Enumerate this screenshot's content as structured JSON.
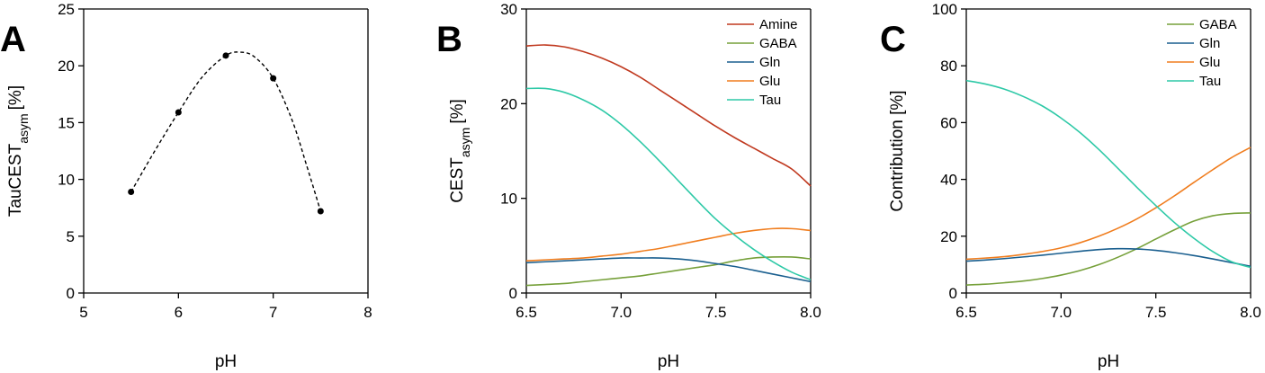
{
  "chart_data": [
    {
      "panel": "A",
      "type": "scatter",
      "xlabel": "pH",
      "ylabel_main": "TauCEST",
      "ylabel_sub": "asym",
      "ylabel_unit": "[%]",
      "xlim": [
        5,
        8
      ],
      "ylim": [
        0,
        25
      ],
      "xticks": [
        "5",
        "6",
        "7",
        "8"
      ],
      "yticks": [
        "0",
        "5",
        "10",
        "15",
        "20",
        "25"
      ],
      "series": [
        {
          "x": [
            5.5,
            6.0,
            6.5,
            7.0,
            7.5
          ],
          "y": [
            8.9,
            15.9,
            20.9,
            18.9,
            7.2
          ],
          "color": "#000000"
        }
      ],
      "fit_curve": {
        "style": "dashed",
        "x": [
          5.5,
          5.75,
          6.0,
          6.25,
          6.5,
          6.65,
          6.8,
          7.0,
          7.2,
          7.35,
          7.5
        ],
        "y": [
          8.9,
          12.5,
          15.9,
          19.0,
          20.9,
          21.2,
          20.8,
          18.9,
          15.2,
          11.3,
          7.2
        ]
      }
    },
    {
      "panel": "B",
      "type": "line",
      "xlabel": "pH",
      "ylabel_main": "CEST",
      "ylabel_sub": "asym",
      "ylabel_unit": "[%]",
      "xlim": [
        6.5,
        8.0
      ],
      "ylim": [
        0,
        30
      ],
      "xticks": [
        "6.5",
        "7.0",
        "7.5",
        "8.0"
      ],
      "yticks": [
        "0",
        "10",
        "20",
        "30"
      ],
      "x": [
        6.5,
        6.6,
        6.7,
        6.8,
        6.9,
        7.0,
        7.1,
        7.2,
        7.3,
        7.4,
        7.5,
        7.6,
        7.7,
        7.8,
        7.9,
        8.0
      ],
      "series": [
        {
          "name": "Amine",
          "color": "#c0391f",
          "values": [
            26.1,
            26.2,
            26.0,
            25.5,
            24.8,
            23.9,
            22.8,
            21.5,
            20.2,
            18.9,
            17.6,
            16.4,
            15.3,
            14.2,
            13.1,
            11.3
          ]
        },
        {
          "name": "GABA",
          "color": "#76a03a",
          "values": [
            0.8,
            0.9,
            1.0,
            1.2,
            1.4,
            1.6,
            1.8,
            2.1,
            2.4,
            2.7,
            3.0,
            3.4,
            3.7,
            3.8,
            3.8,
            3.6
          ]
        },
        {
          "name": "Gln",
          "color": "#1a5f8f",
          "values": [
            3.2,
            3.3,
            3.4,
            3.5,
            3.6,
            3.7,
            3.7,
            3.7,
            3.6,
            3.4,
            3.1,
            2.8,
            2.4,
            2.0,
            1.6,
            1.2
          ]
        },
        {
          "name": "Glu",
          "color": "#f07d1e",
          "values": [
            3.4,
            3.5,
            3.6,
            3.7,
            3.9,
            4.1,
            4.4,
            4.7,
            5.1,
            5.5,
            5.9,
            6.3,
            6.6,
            6.8,
            6.8,
            6.6
          ]
        },
        {
          "name": "Tau",
          "color": "#2ec9a7",
          "values": [
            21.6,
            21.6,
            21.2,
            20.4,
            19.3,
            17.8,
            16.0,
            14.0,
            11.9,
            9.8,
            7.8,
            6.1,
            4.6,
            3.3,
            2.2,
            1.4
          ]
        }
      ],
      "legend_position": "top-right"
    },
    {
      "panel": "C",
      "type": "line",
      "xlabel": "pH",
      "ylabel": "Contribution [%]",
      "xlim": [
        6.5,
        8.0
      ],
      "ylim": [
        0,
        100
      ],
      "xticks": [
        "6.5",
        "7.0",
        "7.5",
        "8.0"
      ],
      "yticks": [
        "0",
        "20",
        "40",
        "60",
        "80",
        "100"
      ],
      "x": [
        6.5,
        6.6,
        6.7,
        6.8,
        6.9,
        7.0,
        7.1,
        7.2,
        7.3,
        7.4,
        7.5,
        7.6,
        7.7,
        7.8,
        7.9,
        8.0
      ],
      "series": [
        {
          "name": "GABA",
          "color": "#76a03a",
          "values": [
            2.8,
            3.1,
            3.6,
            4.2,
            5.1,
            6.3,
            7.9,
            10.0,
            12.6,
            15.6,
            19.0,
            22.3,
            25.3,
            27.2,
            28.0,
            28.2
          ]
        },
        {
          "name": "Gln",
          "color": "#1a5f8f",
          "values": [
            11.2,
            11.6,
            12.1,
            12.7,
            13.3,
            14.0,
            14.7,
            15.3,
            15.6,
            15.5,
            15.0,
            14.2,
            13.2,
            12.0,
            10.7,
            9.4
          ]
        },
        {
          "name": "Glu",
          "color": "#f07d1e",
          "values": [
            11.9,
            12.3,
            12.8,
            13.6,
            14.6,
            15.9,
            17.7,
            20.0,
            22.8,
            26.1,
            30.0,
            34.3,
            38.9,
            43.4,
            47.7,
            51.3
          ]
        },
        {
          "name": "Tau",
          "color": "#2ec9a7",
          "values": [
            74.8,
            73.6,
            71.8,
            69.2,
            65.9,
            61.6,
            56.5,
            50.5,
            43.9,
            37.2,
            30.8,
            24.7,
            19.3,
            14.6,
            11.0,
            9.0
          ]
        }
      ],
      "legend_position": "top-right"
    }
  ]
}
